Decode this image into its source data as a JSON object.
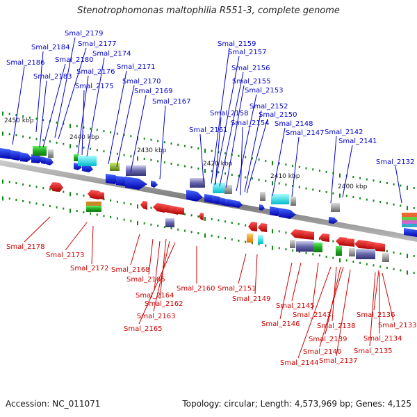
{
  "title": "Stenotrophomonas maltophilia R551-3, complete genome",
  "footer": {
    "accession": "Accession: NC_011071",
    "topology": "Topology: circular; Length: 4,573,969 bp; Genes: 4,125"
  },
  "colors": {
    "forward": "#0000cc",
    "reverse": "#cc0000",
    "backbone": "#8a8a8a",
    "tick": "#118811"
  },
  "kbp_ticks": [
    "2450 kbp",
    "2440 kbp",
    "2430 kbp",
    "2420 kbp",
    "2410 kbp",
    "2400 kbp"
  ],
  "top_labels": [
    "Smal_2179",
    "Smal_2184",
    "Smal_2177",
    "Smal_2174",
    "Smal_2186",
    "Smal_2180",
    "Smal_2183",
    "Smal_2176",
    "Smal_2175",
    "Smal_2171",
    "Smal_2170",
    "Smal_2169",
    "Smal_2167",
    "Smal_2159",
    "Smal_2157",
    "Smal_2156",
    "Smal_2155",
    "Smal_2153",
    "Smal_2152",
    "Smal_2150",
    "Smal_2158",
    "Smal_2154",
    "Smal_2148",
    "Smal_2161",
    "Smal_2147",
    "Smal_2142",
    "Smal_2141",
    "Smal_2132"
  ],
  "bottom_labels": [
    "Smal_2178",
    "Smal_2173",
    "Smal_2172",
    "Smal_2168",
    "Smal_2166",
    "Smal_2164",
    "Smal_2162",
    "Smal_2163",
    "Smal_2165",
    "Smal_2160",
    "Smal_2151",
    "Smal_2149",
    "Smal_2145",
    "Smal_2146",
    "Smal_2143",
    "Smal_2138",
    "Smal_2139",
    "Smal_2140",
    "Smal_2144",
    "Smal_2137",
    "Smal_2136",
    "Smal_2133",
    "Smal_2134",
    "Smal_2135"
  ]
}
